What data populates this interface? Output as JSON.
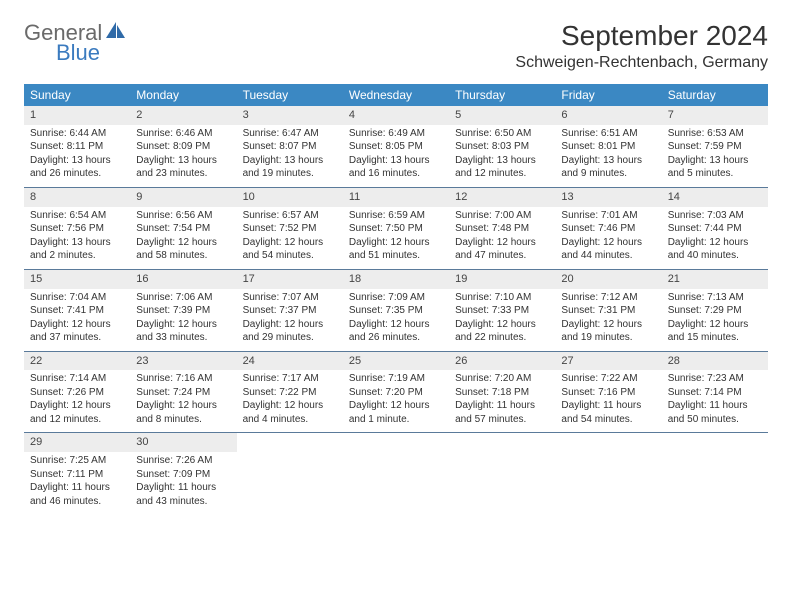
{
  "logo": {
    "word1": "General",
    "word2": "Blue"
  },
  "title": "September 2024",
  "location": "Schweigen-Rechtenbach, Germany",
  "colors": {
    "header_bg": "#3b88c3",
    "header_text": "#ffffff",
    "daynum_bg": "#ededed",
    "border": "#5a7a9a",
    "logo_gray": "#6a6a6a",
    "logo_blue": "#3b7bbf"
  },
  "day_names": [
    "Sunday",
    "Monday",
    "Tuesday",
    "Wednesday",
    "Thursday",
    "Friday",
    "Saturday"
  ],
  "weeks": [
    [
      {
        "n": "1",
        "sr": "Sunrise: 6:44 AM",
        "ss": "Sunset: 8:11 PM",
        "d1": "Daylight: 13 hours",
        "d2": "and 26 minutes."
      },
      {
        "n": "2",
        "sr": "Sunrise: 6:46 AM",
        "ss": "Sunset: 8:09 PM",
        "d1": "Daylight: 13 hours",
        "d2": "and 23 minutes."
      },
      {
        "n": "3",
        "sr": "Sunrise: 6:47 AM",
        "ss": "Sunset: 8:07 PM",
        "d1": "Daylight: 13 hours",
        "d2": "and 19 minutes."
      },
      {
        "n": "4",
        "sr": "Sunrise: 6:49 AM",
        "ss": "Sunset: 8:05 PM",
        "d1": "Daylight: 13 hours",
        "d2": "and 16 minutes."
      },
      {
        "n": "5",
        "sr": "Sunrise: 6:50 AM",
        "ss": "Sunset: 8:03 PM",
        "d1": "Daylight: 13 hours",
        "d2": "and 12 minutes."
      },
      {
        "n": "6",
        "sr": "Sunrise: 6:51 AM",
        "ss": "Sunset: 8:01 PM",
        "d1": "Daylight: 13 hours",
        "d2": "and 9 minutes."
      },
      {
        "n": "7",
        "sr": "Sunrise: 6:53 AM",
        "ss": "Sunset: 7:59 PM",
        "d1": "Daylight: 13 hours",
        "d2": "and 5 minutes."
      }
    ],
    [
      {
        "n": "8",
        "sr": "Sunrise: 6:54 AM",
        "ss": "Sunset: 7:56 PM",
        "d1": "Daylight: 13 hours",
        "d2": "and 2 minutes."
      },
      {
        "n": "9",
        "sr": "Sunrise: 6:56 AM",
        "ss": "Sunset: 7:54 PM",
        "d1": "Daylight: 12 hours",
        "d2": "and 58 minutes."
      },
      {
        "n": "10",
        "sr": "Sunrise: 6:57 AM",
        "ss": "Sunset: 7:52 PM",
        "d1": "Daylight: 12 hours",
        "d2": "and 54 minutes."
      },
      {
        "n": "11",
        "sr": "Sunrise: 6:59 AM",
        "ss": "Sunset: 7:50 PM",
        "d1": "Daylight: 12 hours",
        "d2": "and 51 minutes."
      },
      {
        "n": "12",
        "sr": "Sunrise: 7:00 AM",
        "ss": "Sunset: 7:48 PM",
        "d1": "Daylight: 12 hours",
        "d2": "and 47 minutes."
      },
      {
        "n": "13",
        "sr": "Sunrise: 7:01 AM",
        "ss": "Sunset: 7:46 PM",
        "d1": "Daylight: 12 hours",
        "d2": "and 44 minutes."
      },
      {
        "n": "14",
        "sr": "Sunrise: 7:03 AM",
        "ss": "Sunset: 7:44 PM",
        "d1": "Daylight: 12 hours",
        "d2": "and 40 minutes."
      }
    ],
    [
      {
        "n": "15",
        "sr": "Sunrise: 7:04 AM",
        "ss": "Sunset: 7:41 PM",
        "d1": "Daylight: 12 hours",
        "d2": "and 37 minutes."
      },
      {
        "n": "16",
        "sr": "Sunrise: 7:06 AM",
        "ss": "Sunset: 7:39 PM",
        "d1": "Daylight: 12 hours",
        "d2": "and 33 minutes."
      },
      {
        "n": "17",
        "sr": "Sunrise: 7:07 AM",
        "ss": "Sunset: 7:37 PM",
        "d1": "Daylight: 12 hours",
        "d2": "and 29 minutes."
      },
      {
        "n": "18",
        "sr": "Sunrise: 7:09 AM",
        "ss": "Sunset: 7:35 PM",
        "d1": "Daylight: 12 hours",
        "d2": "and 26 minutes."
      },
      {
        "n": "19",
        "sr": "Sunrise: 7:10 AM",
        "ss": "Sunset: 7:33 PM",
        "d1": "Daylight: 12 hours",
        "d2": "and 22 minutes."
      },
      {
        "n": "20",
        "sr": "Sunrise: 7:12 AM",
        "ss": "Sunset: 7:31 PM",
        "d1": "Daylight: 12 hours",
        "d2": "and 19 minutes."
      },
      {
        "n": "21",
        "sr": "Sunrise: 7:13 AM",
        "ss": "Sunset: 7:29 PM",
        "d1": "Daylight: 12 hours",
        "d2": "and 15 minutes."
      }
    ],
    [
      {
        "n": "22",
        "sr": "Sunrise: 7:14 AM",
        "ss": "Sunset: 7:26 PM",
        "d1": "Daylight: 12 hours",
        "d2": "and 12 minutes."
      },
      {
        "n": "23",
        "sr": "Sunrise: 7:16 AM",
        "ss": "Sunset: 7:24 PM",
        "d1": "Daylight: 12 hours",
        "d2": "and 8 minutes."
      },
      {
        "n": "24",
        "sr": "Sunrise: 7:17 AM",
        "ss": "Sunset: 7:22 PM",
        "d1": "Daylight: 12 hours",
        "d2": "and 4 minutes."
      },
      {
        "n": "25",
        "sr": "Sunrise: 7:19 AM",
        "ss": "Sunset: 7:20 PM",
        "d1": "Daylight: 12 hours",
        "d2": "and 1 minute."
      },
      {
        "n": "26",
        "sr": "Sunrise: 7:20 AM",
        "ss": "Sunset: 7:18 PM",
        "d1": "Daylight: 11 hours",
        "d2": "and 57 minutes."
      },
      {
        "n": "27",
        "sr": "Sunrise: 7:22 AM",
        "ss": "Sunset: 7:16 PM",
        "d1": "Daylight: 11 hours",
        "d2": "and 54 minutes."
      },
      {
        "n": "28",
        "sr": "Sunrise: 7:23 AM",
        "ss": "Sunset: 7:14 PM",
        "d1": "Daylight: 11 hours",
        "d2": "and 50 minutes."
      }
    ],
    [
      {
        "n": "29",
        "sr": "Sunrise: 7:25 AM",
        "ss": "Sunset: 7:11 PM",
        "d1": "Daylight: 11 hours",
        "d2": "and 46 minutes."
      },
      {
        "n": "30",
        "sr": "Sunrise: 7:26 AM",
        "ss": "Sunset: 7:09 PM",
        "d1": "Daylight: 11 hours",
        "d2": "and 43 minutes."
      },
      null,
      null,
      null,
      null,
      null
    ]
  ]
}
